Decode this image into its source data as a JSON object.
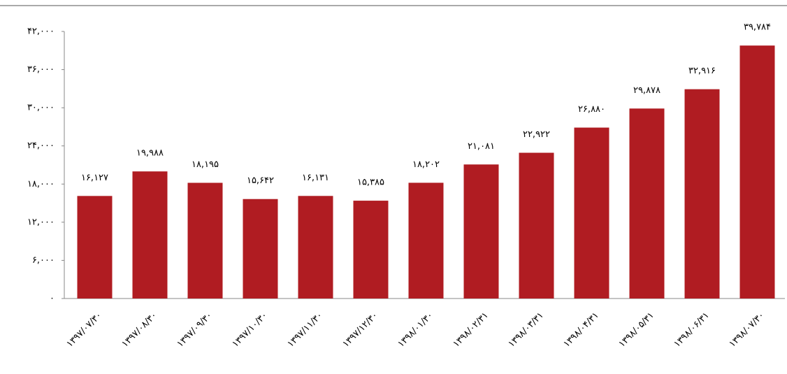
{
  "chart_data": {
    "type": "bar",
    "categories": [
      "۱۳۹۷/۰۷/۳۰",
      "۱۳۹۷/۰۸/۳۰",
      "۱۳۹۷/۰۹/۳۰",
      "۱۳۹۷/۱۰/۳۰",
      "۱۳۹۷/۱۱/۳۰",
      "۱۳۹۷/۱۲/۳۰",
      "۱۳۹۸/۰۱/۳۰",
      "۱۳۹۸/۰۲/۳۱",
      "۱۳۹۸/۰۳/۳۱",
      "۱۳۹۸/۰۴/۳۱",
      "۱۳۹۸/۰۵/۳۱",
      "۱۳۹۸/۰۶/۳۱",
      "۱۳۹۸/۰۷/۳۰"
    ],
    "values": [
      16127,
      19988,
      18195,
      15642,
      16131,
      15385,
      18202,
      21081,
      22922,
      26880,
      29878,
      32916,
      39784
    ],
    "value_labels": [
      "۱۶,۱۲۷",
      "۱۹,۹۸۸",
      "۱۸,۱۹۵",
      "۱۵,۶۴۲",
      "۱۶,۱۳۱",
      "۱۵,۳۸۵",
      "۱۸,۲۰۲",
      "۲۱,۰۸۱",
      "۲۲,۹۲۲",
      "۲۶,۸۸۰",
      "۲۹,۸۷۸",
      "۳۲,۹۱۶",
      "۳۹,۷۸۴"
    ],
    "color": "#b01c22",
    "ylim": [
      0,
      42000
    ],
    "yticks": [
      {
        "value": 0,
        "label": "۰"
      },
      {
        "value": 6000,
        "label": "۶,۰۰۰"
      },
      {
        "value": 12000,
        "label": "۱۲,۰۰۰"
      },
      {
        "value": 18000,
        "label": "۱۸,۰۰۰"
      },
      {
        "value": 24000,
        "label": "۲۴,۰۰۰"
      },
      {
        "value": 30000,
        "label": "۳۰,۰۰۰"
      },
      {
        "value": 36000,
        "label": "۳۶,۰۰۰"
      },
      {
        "value": 42000,
        "label": "۴۲,۰۰۰"
      }
    ],
    "grid": false
  }
}
